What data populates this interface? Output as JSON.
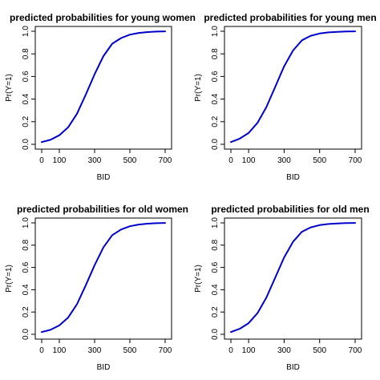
{
  "chart_data": [
    {
      "type": "line",
      "title": "predicted probabilities for young women",
      "xlabel": "BID",
      "ylabel": "Pr(Y=1)",
      "xlim": [
        0,
        700
      ],
      "ylim": [
        0,
        1
      ],
      "xticks": [
        "0",
        "100",
        "300",
        "500",
        "700"
      ],
      "yticks": [
        "0.0",
        "0.2",
        "0.4",
        "0.6",
        "0.8",
        "1.0"
      ],
      "color": "#0000cc",
      "series": [
        {
          "x": [
            0,
            50,
            100,
            150,
            200,
            250,
            300,
            350,
            400,
            450,
            500,
            550,
            600,
            650,
            700
          ],
          "y": [
            0.02,
            0.04,
            0.08,
            0.15,
            0.27,
            0.44,
            0.62,
            0.78,
            0.89,
            0.94,
            0.97,
            0.985,
            0.993,
            0.997,
            0.999
          ]
        }
      ]
    },
    {
      "type": "line",
      "title": "predicted probabilities for young men",
      "xlabel": "BID",
      "ylabel": "Pr(Y=1)",
      "xlim": [
        0,
        700
      ],
      "ylim": [
        0,
        1
      ],
      "xticks": [
        "0",
        "100",
        "300",
        "500",
        "700"
      ],
      "yticks": [
        "0.0",
        "0.2",
        "0.4",
        "0.6",
        "0.8",
        "1.0"
      ],
      "color": "#0000cc",
      "series": [
        {
          "x": [
            0,
            50,
            100,
            150,
            200,
            250,
            300,
            350,
            400,
            450,
            500,
            550,
            600,
            650,
            700
          ],
          "y": [
            0.02,
            0.05,
            0.1,
            0.19,
            0.33,
            0.51,
            0.69,
            0.83,
            0.92,
            0.96,
            0.98,
            0.99,
            0.995,
            0.998,
            0.999
          ]
        }
      ]
    },
    {
      "type": "line",
      "title": "predicted probabilities for old women",
      "xlabel": "BID",
      "ylabel": "Pr(Y=1)",
      "xlim": [
        0,
        700
      ],
      "ylim": [
        0,
        1
      ],
      "xticks": [
        "0",
        "100",
        "300",
        "500",
        "700"
      ],
      "yticks": [
        "0.0",
        "0.2",
        "0.4",
        "0.6",
        "0.8",
        "1.0"
      ],
      "color": "#0000cc",
      "series": [
        {
          "x": [
            0,
            50,
            100,
            150,
            200,
            250,
            300,
            350,
            400,
            450,
            500,
            550,
            600,
            650,
            700
          ],
          "y": [
            0.02,
            0.04,
            0.08,
            0.15,
            0.27,
            0.44,
            0.62,
            0.78,
            0.89,
            0.94,
            0.97,
            0.985,
            0.993,
            0.997,
            0.999
          ]
        }
      ]
    },
    {
      "type": "line",
      "title": "predicted probabilities for old men",
      "xlabel": "BID",
      "ylabel": "Pr(Y=1)",
      "xlim": [
        0,
        700
      ],
      "ylim": [
        0,
        1
      ],
      "xticks": [
        "0",
        "100",
        "300",
        "500",
        "700"
      ],
      "yticks": [
        "0.0",
        "0.2",
        "0.4",
        "0.6",
        "0.8",
        "1.0"
      ],
      "color": "#0000cc",
      "series": [
        {
          "x": [
            0,
            50,
            100,
            150,
            200,
            250,
            300,
            350,
            400,
            450,
            500,
            550,
            600,
            650,
            700
          ],
          "y": [
            0.02,
            0.05,
            0.1,
            0.19,
            0.33,
            0.51,
            0.69,
            0.83,
            0.92,
            0.96,
            0.98,
            0.99,
            0.995,
            0.998,
            0.999
          ]
        }
      ]
    }
  ]
}
